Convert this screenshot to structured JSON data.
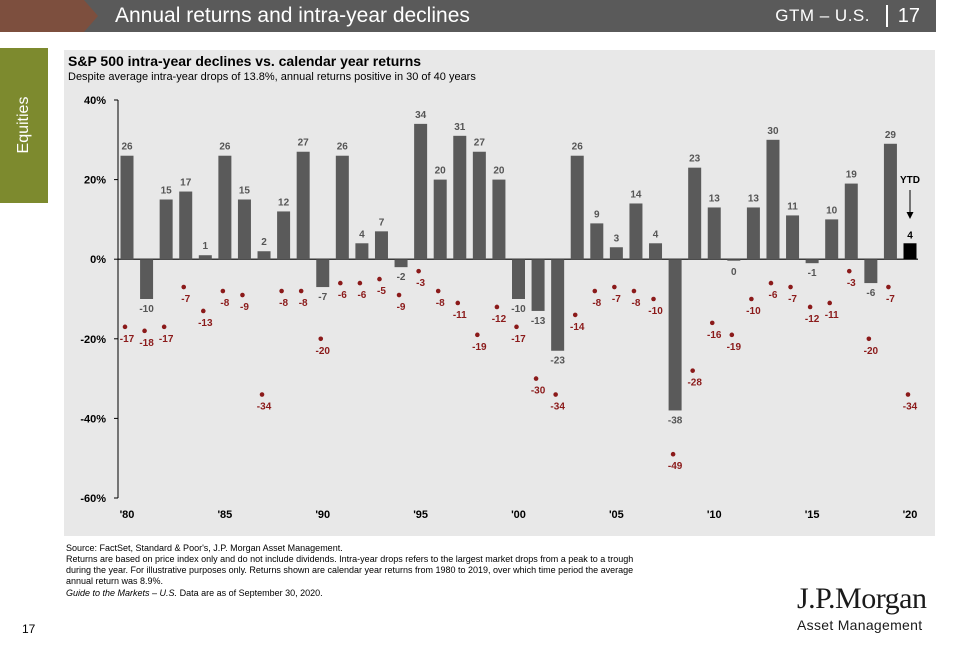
{
  "header": {
    "title": "Annual returns and intra-year declines",
    "code": "GTM – U.S.",
    "page": "17",
    "colors": {
      "bar": "#5a5a5a",
      "accent": "#7d4f3e"
    }
  },
  "sidebar": {
    "label": "Equities",
    "color": "#7d8a2e"
  },
  "chart_data": {
    "type": "bar",
    "title": "S&P 500 intra-year declines vs. calendar year returns",
    "subtitle": "Despite average intra-year drops of 13.8%, annual returns positive in 30 of 40 years",
    "years": [
      1980,
      1981,
      1982,
      1983,
      1984,
      1985,
      1986,
      1987,
      1988,
      1989,
      1990,
      1991,
      1992,
      1993,
      1994,
      1995,
      1996,
      1997,
      1998,
      1999,
      2000,
      2001,
      2002,
      2003,
      2004,
      2005,
      2006,
      2007,
      2008,
      2009,
      2010,
      2011,
      2012,
      2013,
      2014,
      2015,
      2016,
      2017,
      2018,
      2019
    ],
    "series": [
      {
        "values": [
          26,
          -10,
          15,
          17,
          1,
          26,
          15,
          2,
          12,
          27,
          -7,
          26,
          4,
          7,
          -2,
          34,
          20,
          31,
          27,
          20,
          -10,
          -13,
          -23,
          26,
          9,
          3,
          14,
          4,
          -38,
          23,
          13,
          0,
          13,
          30,
          11,
          -1,
          10,
          19,
          -6,
          29
        ],
        "labels": [
          "26",
          "-10",
          "15",
          "17",
          "1",
          "26",
          "15",
          "2",
          "12",
          "27",
          "-7",
          "26",
          "4",
          "7",
          "-2",
          "34",
          "20",
          "31",
          "27",
          "20",
          "-10",
          "-13",
          "-23",
          "26",
          "9",
          "3",
          "14",
          "4",
          "-38",
          "23",
          "13",
          "0",
          "13",
          "30",
          "11",
          "-1",
          "10",
          "19",
          "-6",
          "29"
        ],
        "color": "#5a5a5a"
      },
      {
        "values": [
          -17,
          -18,
          -17,
          -7,
          -13,
          -8,
          -9,
          -34,
          -8,
          -8,
          -20,
          -6,
          -6,
          -5,
          -9,
          -3,
          -8,
          -11,
          -19,
          -12,
          -17,
          -30,
          -34,
          -14,
          -8,
          -7,
          -8,
          -10,
          -49,
          -28,
          -16,
          -19,
          -10,
          -6,
          -7,
          -12,
          -11,
          -3,
          -20,
          -7
        ],
        "labels": [
          "-17",
          "-18",
          "-17",
          "-7",
          "-13",
          "-8",
          "-9",
          "-34",
          "-8",
          "-8",
          "-20",
          "-6",
          "-6",
          "-5",
          "-9",
          "-3",
          "-8",
          "-11",
          "-19",
          "-12",
          "-17",
          "-30",
          "-34",
          "-14",
          "-8",
          "-7",
          "-8",
          "-10",
          "-49",
          "-28",
          "-16",
          "-19",
          "-10",
          "-6",
          "-7",
          "-12",
          "-11",
          "-3",
          "-20",
          "-7"
        ],
        "color": "#8b1a1a"
      }
    ],
    "ytd": {
      "year": 2020,
      "return": 4,
      "return_label": "4",
      "decline": -34,
      "decline_label": "-34",
      "label": "YTD",
      "color": "#000000"
    },
    "ylim": [
      -60,
      40
    ],
    "yticks": [
      40,
      20,
      0,
      -20,
      -40,
      -60
    ],
    "yticklabels": [
      "40%",
      "20%",
      "0%",
      "-20%",
      "-40%",
      "-60%"
    ],
    "xticks": [
      1980,
      1985,
      1990,
      1995,
      2000,
      2005,
      2010,
      2015,
      2020
    ],
    "xticklabels": [
      "'80",
      "'85",
      "'90",
      "'95",
      "'00",
      "'05",
      "'10",
      "'15",
      "'20"
    ]
  },
  "footnotes": {
    "line1": "Source: FactSet, Standard & Poor's, J.P. Morgan Asset Management.",
    "line2": "Returns are based on price index only and do not include dividends. Intra-year drops refers to the largest market drops from a peak to a trough",
    "line3": "during the year. For illustrative purposes only. Returns shown are calendar year returns from 1980 to 2019, over which time period the average",
    "line4": "annual return was 8.9%.",
    "guide_title": "Guide to the Markets – U.S.",
    "guide_suffix": " Data are as of September 30, 2020."
  },
  "footer": {
    "page_number": "17",
    "logo_name": "J.P.Morgan",
    "logo_sub": "Asset Management"
  }
}
